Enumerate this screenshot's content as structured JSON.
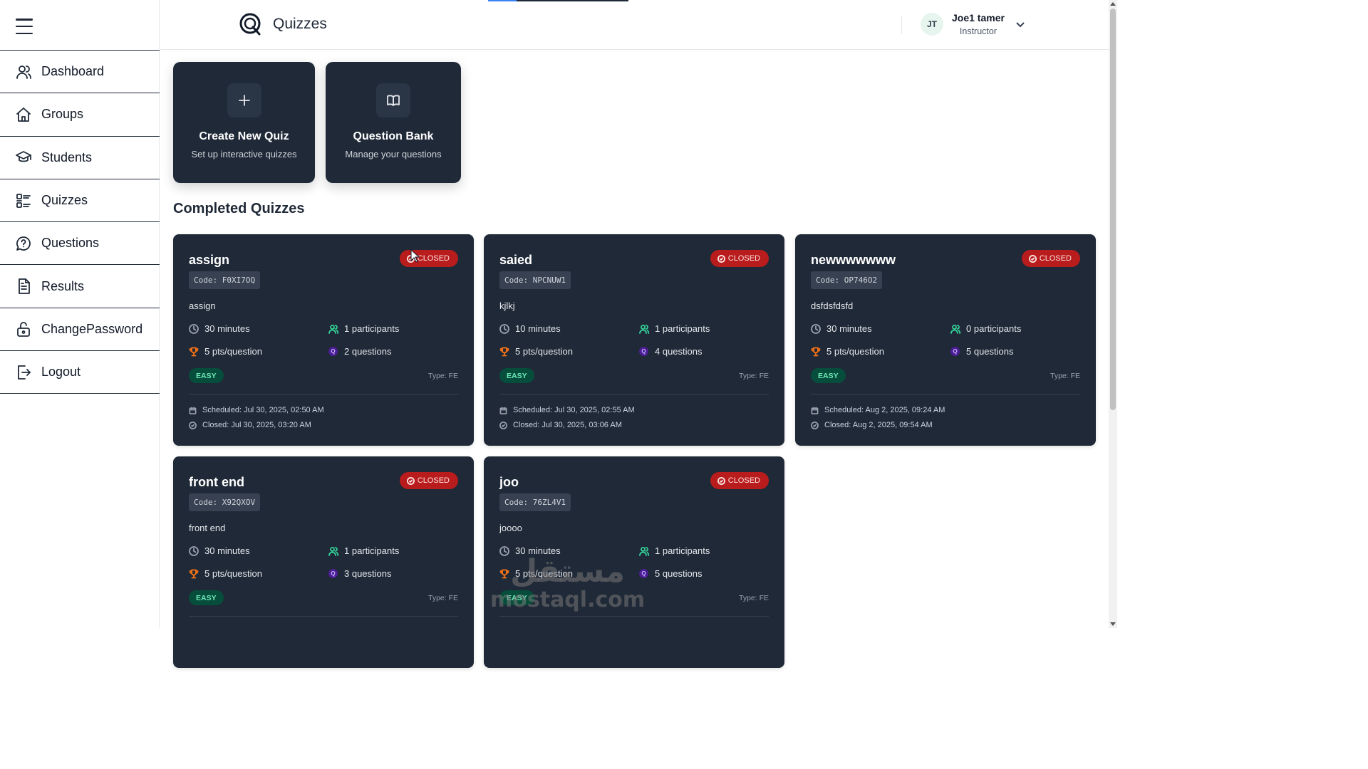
{
  "app": {
    "title": "Quizzes"
  },
  "sidebar": {
    "items": [
      {
        "label": "Dashboard",
        "icon": "users-icon"
      },
      {
        "label": "Groups",
        "icon": "home-icon"
      },
      {
        "label": "Students",
        "icon": "graduation-cap-icon"
      },
      {
        "label": "Quizzes",
        "icon": "list-icon"
      },
      {
        "label": "Questions",
        "icon": "question-bubble-icon"
      },
      {
        "label": "Results",
        "icon": "document-icon"
      },
      {
        "label": "ChangePassword",
        "icon": "unlock-icon"
      },
      {
        "label": "Logout",
        "icon": "logout-icon"
      }
    ]
  },
  "user": {
    "initials": "JT",
    "name": "Joe1 tamer",
    "role": "Instructor"
  },
  "actions": [
    {
      "title": "Create New Quiz",
      "subtitle": "Set up interactive quizzes",
      "icon": "plus-icon"
    },
    {
      "title": "Question Bank",
      "subtitle": "Manage your questions",
      "icon": "book-icon"
    }
  ],
  "section": {
    "title": "Completed Quizzes"
  },
  "quizzes": [
    {
      "name": "assign",
      "status": "CLOSED",
      "code": "Code: F0XI7OQ",
      "description": "assign",
      "duration": "30 minutes",
      "participants": "1 participants",
      "points": "5 pts/question",
      "questions": "2 questions",
      "difficulty": "EASY",
      "type": "Type: FE",
      "scheduled": "Scheduled: Jul 30, 2025, 02:50 AM",
      "closed": "Closed: Jul 30, 2025, 03:20 AM"
    },
    {
      "name": "saied",
      "status": "CLOSED",
      "code": "Code: NPCNUW1",
      "description": "kjlkj",
      "duration": "10 minutes",
      "participants": "1 participants",
      "points": "5 pts/question",
      "questions": "4 questions",
      "difficulty": "EASY",
      "type": "Type: FE",
      "scheduled": "Scheduled: Jul 30, 2025, 02:55 AM",
      "closed": "Closed: Jul 30, 2025, 03:06 AM"
    },
    {
      "name": "newwwwwww",
      "status": "CLOSED",
      "code": "Code: OP746O2",
      "description": "dsfdsfdsfd",
      "duration": "30 minutes",
      "participants": "0 participants",
      "points": "5 pts/question",
      "questions": "5 questions",
      "difficulty": "EASY",
      "type": "Type: FE",
      "scheduled": "Scheduled: Aug 2, 2025, 09:24 AM",
      "closed": "Closed: Aug 2, 2025, 09:54 AM"
    },
    {
      "name": "front end",
      "status": "CLOSED",
      "code": "Code: X92QXOV",
      "description": "front end",
      "duration": "30 minutes",
      "participants": "1 participants",
      "points": "5 pts/question",
      "questions": "3 questions",
      "difficulty": "EASY",
      "type": "Type: FE",
      "scheduled": "",
      "closed": ""
    },
    {
      "name": "joo",
      "status": "CLOSED",
      "code": "Code: 76ZL4V1",
      "description": "joooo",
      "duration": "30 minutes",
      "participants": "1 participants",
      "points": "5 pts/question",
      "questions": "5 questions",
      "difficulty": "EASY",
      "type": "Type: FE",
      "scheduled": "",
      "closed": ""
    }
  ],
  "watermark": {
    "arabic": "مستقل",
    "latin": "mostaql.com"
  },
  "colors": {
    "card_bg": "#1f2937",
    "closed_badge": "#b91c1c",
    "easy_badge": "#064e3b",
    "duration_icon": "#9ca3af",
    "participants_icon": "#34d399",
    "points_icon": "#f97316",
    "questions_badge": "#4c1d95"
  }
}
